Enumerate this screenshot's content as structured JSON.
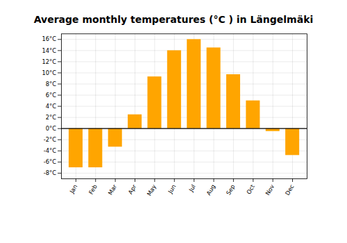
{
  "chart_data": {
    "type": "bar",
    "title": "Average monthly temperatures (°C ) in Längelmäki",
    "categories": [
      "Jan",
      "Feb",
      "Mar",
      "Apr",
      "May",
      "Jun",
      "Jul",
      "Aug",
      "Sep",
      "Oct",
      "Nov",
      "Dec"
    ],
    "values": [
      -7.0,
      -7.0,
      -3.3,
      2.5,
      9.3,
      14.0,
      16.0,
      14.5,
      9.7,
      5.0,
      -0.5,
      -4.8
    ],
    "color": "#FFA500",
    "ylim": [
      -9,
      17
    ],
    "yticks": [
      {
        "value": -8,
        "label": "-8°C"
      },
      {
        "value": -6,
        "label": "-6°C"
      },
      {
        "value": -4,
        "label": "-4°C"
      },
      {
        "value": -2,
        "label": "-2°C"
      },
      {
        "value": 0,
        "label": "0°C"
      },
      {
        "value": 2,
        "label": "2°C"
      },
      {
        "value": 4,
        "label": "4°C"
      },
      {
        "value": 6,
        "label": "6°C"
      },
      {
        "value": 8,
        "label": "8°C"
      },
      {
        "value": 10,
        "label": "10°C"
      },
      {
        "value": 12,
        "label": "12°C"
      },
      {
        "value": 14,
        "label": "14°C"
      },
      {
        "value": 16,
        "label": "16°C"
      }
    ],
    "grid": true
  }
}
